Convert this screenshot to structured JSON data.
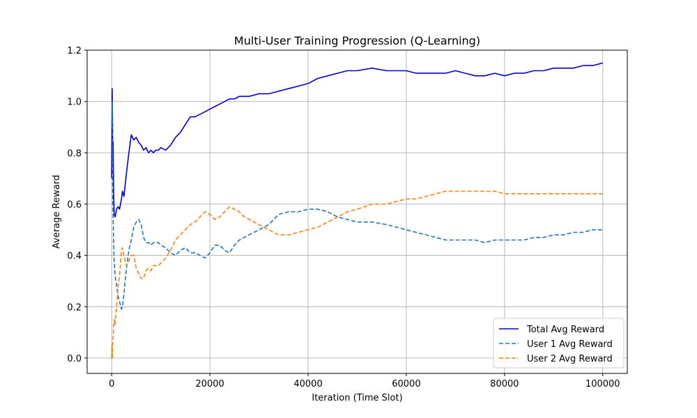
{
  "chart_data": {
    "type": "line",
    "title": "Multi-User Training Progression (Q-Learning)",
    "xlabel": "Iteration (Time Slot)",
    "ylabel": "Average Reward",
    "xlim": [
      -5000,
      105000
    ],
    "ylim": [
      -0.06,
      1.2
    ],
    "xticks": [
      0,
      20000,
      40000,
      60000,
      80000,
      100000
    ],
    "xtick_labels": [
      "0",
      "20000",
      "40000",
      "60000",
      "80000",
      "100000"
    ],
    "yticks": [
      0.0,
      0.2,
      0.4,
      0.6,
      0.8,
      1.0,
      1.2
    ],
    "ytick_labels": [
      "0.0",
      "0.2",
      "0.4",
      "0.6",
      "0.8",
      "1.0",
      "1.2"
    ],
    "grid": true,
    "legend_position": "lower-right",
    "series": [
      {
        "name": "Total Avg Reward",
        "color": "#0000cc",
        "dash": "solid",
        "x": [
          0,
          50,
          100,
          150,
          200,
          300,
          400,
          500,
          700,
          1000,
          1300,
          1600,
          2000,
          2200,
          2500,
          3000,
          3500,
          4000,
          4500,
          5000,
          5500,
          6000,
          6500,
          7000,
          7500,
          8000,
          8500,
          9000,
          9500,
          10000,
          11000,
          12000,
          13000,
          14000,
          15000,
          16000,
          17000,
          18000,
          19000,
          20000,
          21000,
          22000,
          23000,
          24000,
          25000,
          26000,
          27000,
          28000,
          30000,
          32000,
          34000,
          36000,
          38000,
          40000,
          42000,
          44000,
          46000,
          48000,
          50000,
          53000,
          56000,
          58000,
          60000,
          62000,
          64000,
          66000,
          68000,
          70000,
          72000,
          74000,
          76000,
          78000,
          80000,
          82000,
          84000,
          86000,
          88000,
          90000,
          92000,
          94000,
          96000,
          98000,
          100000
        ],
        "y": [
          0.7,
          0.9,
          1.05,
          0.95,
          0.85,
          0.84,
          0.65,
          0.56,
          0.55,
          0.58,
          0.59,
          0.58,
          0.62,
          0.65,
          0.63,
          0.72,
          0.8,
          0.87,
          0.85,
          0.86,
          0.84,
          0.83,
          0.81,
          0.82,
          0.8,
          0.81,
          0.8,
          0.81,
          0.81,
          0.82,
          0.81,
          0.83,
          0.86,
          0.88,
          0.91,
          0.94,
          0.94,
          0.95,
          0.96,
          0.97,
          0.98,
          0.99,
          1.0,
          1.01,
          1.01,
          1.02,
          1.02,
          1.02,
          1.03,
          1.03,
          1.04,
          1.05,
          1.06,
          1.07,
          1.09,
          1.1,
          1.11,
          1.12,
          1.12,
          1.13,
          1.12,
          1.12,
          1.12,
          1.11,
          1.11,
          1.11,
          1.11,
          1.12,
          1.11,
          1.1,
          1.1,
          1.11,
          1.1,
          1.11,
          1.11,
          1.12,
          1.12,
          1.13,
          1.13,
          1.13,
          1.14,
          1.14,
          1.15
        ]
      },
      {
        "name": "User 1 Avg Reward",
        "color": "#1f77b4",
        "dash": "dashed",
        "x": [
          0,
          50,
          100,
          150,
          200,
          300,
          400,
          500,
          700,
          1000,
          1300,
          1600,
          2000,
          2200,
          2500,
          3000,
          3500,
          4000,
          4500,
          5000,
          5500,
          6000,
          6500,
          7000,
          7500,
          8000,
          8500,
          9000,
          9500,
          10000,
          11000,
          12000,
          13000,
          14000,
          15000,
          16000,
          17000,
          18000,
          19000,
          20000,
          21000,
          22000,
          23000,
          24000,
          25000,
          26000,
          27000,
          28000,
          30000,
          32000,
          34000,
          36000,
          38000,
          40000,
          42000,
          44000,
          46000,
          48000,
          50000,
          53000,
          56000,
          58000,
          60000,
          62000,
          64000,
          66000,
          68000,
          70000,
          72000,
          74000,
          76000,
          78000,
          80000,
          82000,
          84000,
          86000,
          88000,
          90000,
          92000,
          94000,
          96000,
          98000,
          100000
        ],
        "y": [
          0.9,
          0.92,
          1.0,
          0.95,
          0.62,
          0.55,
          0.45,
          0.38,
          0.32,
          0.28,
          0.24,
          0.22,
          0.19,
          0.2,
          0.25,
          0.35,
          0.42,
          0.46,
          0.51,
          0.53,
          0.54,
          0.52,
          0.47,
          0.45,
          0.45,
          0.44,
          0.45,
          0.45,
          0.45,
          0.44,
          0.43,
          0.41,
          0.4,
          0.42,
          0.43,
          0.41,
          0.41,
          0.4,
          0.39,
          0.41,
          0.44,
          0.44,
          0.42,
          0.41,
          0.44,
          0.46,
          0.47,
          0.48,
          0.5,
          0.52,
          0.56,
          0.57,
          0.57,
          0.58,
          0.58,
          0.57,
          0.55,
          0.54,
          0.53,
          0.53,
          0.52,
          0.51,
          0.5,
          0.49,
          0.48,
          0.47,
          0.46,
          0.46,
          0.46,
          0.46,
          0.45,
          0.46,
          0.46,
          0.46,
          0.46,
          0.47,
          0.47,
          0.48,
          0.48,
          0.49,
          0.49,
          0.5,
          0.5
        ]
      },
      {
        "name": "User 2 Avg Reward",
        "color": "#ff7f0e",
        "dash": "dashed",
        "x": [
          0,
          50,
          100,
          150,
          200,
          300,
          400,
          500,
          700,
          1000,
          1300,
          1600,
          2000,
          2200,
          2500,
          3000,
          3500,
          4000,
          4500,
          5000,
          5500,
          6000,
          6500,
          7000,
          7500,
          8000,
          8500,
          9000,
          9500,
          10000,
          11000,
          12000,
          13000,
          14000,
          15000,
          16000,
          17000,
          18000,
          19000,
          20000,
          21000,
          22000,
          23000,
          24000,
          25000,
          26000,
          27000,
          28000,
          30000,
          32000,
          34000,
          36000,
          38000,
          40000,
          42000,
          44000,
          46000,
          48000,
          50000,
          53000,
          56000,
          58000,
          60000,
          62000,
          64000,
          66000,
          68000,
          70000,
          72000,
          74000,
          76000,
          78000,
          80000,
          82000,
          84000,
          86000,
          88000,
          90000,
          92000,
          94000,
          96000,
          98000,
          100000
        ],
        "y": [
          0.0,
          0.05,
          0.02,
          0.0,
          0.05,
          0.08,
          0.12,
          0.15,
          0.13,
          0.2,
          0.28,
          0.32,
          0.42,
          0.43,
          0.4,
          0.36,
          0.38,
          0.4,
          0.4,
          0.35,
          0.33,
          0.31,
          0.31,
          0.34,
          0.35,
          0.34,
          0.36,
          0.36,
          0.36,
          0.37,
          0.39,
          0.42,
          0.46,
          0.48,
          0.5,
          0.52,
          0.53,
          0.55,
          0.57,
          0.56,
          0.54,
          0.55,
          0.57,
          0.59,
          0.58,
          0.57,
          0.55,
          0.54,
          0.52,
          0.5,
          0.48,
          0.48,
          0.49,
          0.5,
          0.51,
          0.53,
          0.55,
          0.57,
          0.58,
          0.6,
          0.6,
          0.61,
          0.62,
          0.62,
          0.63,
          0.64,
          0.65,
          0.65,
          0.65,
          0.65,
          0.65,
          0.65,
          0.64,
          0.64,
          0.64,
          0.64,
          0.64,
          0.64,
          0.64,
          0.64,
          0.64,
          0.64,
          0.64
        ]
      }
    ]
  }
}
